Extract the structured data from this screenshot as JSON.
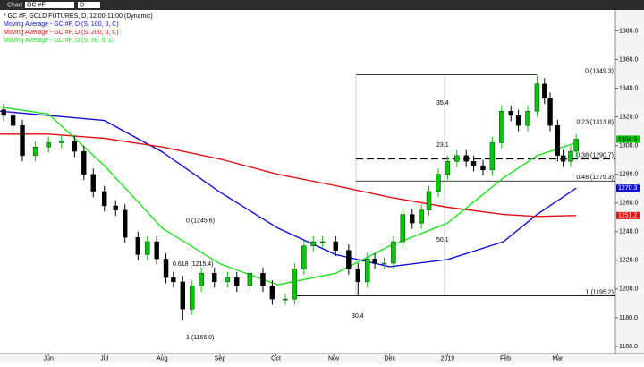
{
  "toolbar": {
    "tab": "Chart",
    "symbol": "GC #F",
    "interval": "D"
  },
  "chart_data": {
    "type": "candlestick",
    "title": "* GC #F, GOLD FUTURES, D, 12:00-11:00 (Dynamic)",
    "up_color": "#00c800",
    "down_color": "#000000",
    "candles": {
      "x": [
        -24,
        -19,
        -14,
        -7,
        0,
        7,
        14,
        19,
        24,
        30,
        36,
        41,
        48,
        53,
        58,
        63,
        67,
        72,
        77,
        82,
        89,
        96,
        101,
        108,
        115,
        120,
        127,
        132,
        137,
        142,
        147,
        154,
        161,
        166,
        171,
        175,
        180,
        185,
        190,
        195,
        200,
        204,
        209,
        214,
        219,
        224,
        228,
        233,
        238,
        243,
        248,
        252,
        257,
        262,
        266,
        269,
        273,
        276,
        280,
        283
      ],
      "open": [
        1325,
        1321,
        1314,
        1293,
        1299,
        1302,
        1303,
        1296,
        1280,
        1268,
        1258,
        1255,
        1236,
        1224,
        1233,
        1221,
        1208,
        1205,
        1186,
        1202,
        1211,
        1205,
        1208,
        1202,
        1211,
        1202,
        1193,
        1193,
        1214,
        1230,
        1233,
        1233,
        1227,
        1214,
        1205,
        1221,
        1218,
        1218,
        1233,
        1252,
        1246,
        1255,
        1268,
        1280,
        1289,
        1293,
        1289,
        1286,
        1283,
        1302,
        1324,
        1321,
        1314,
        1324,
        1343,
        1333,
        1314,
        1293,
        1289,
        1296
      ],
      "high": [
        1329,
        1325,
        1318,
        1303,
        1306,
        1307,
        1307,
        1300,
        1284,
        1272,
        1262,
        1259,
        1240,
        1237,
        1237,
        1225,
        1212,
        1209,
        1206,
        1215,
        1215,
        1212,
        1212,
        1215,
        1215,
        1206,
        1197,
        1218,
        1234,
        1237,
        1237,
        1237,
        1231,
        1218,
        1225,
        1225,
        1222,
        1237,
        1256,
        1256,
        1259,
        1272,
        1284,
        1293,
        1297,
        1297,
        1293,
        1290,
        1306,
        1328,
        1328,
        1325,
        1328,
        1349,
        1347,
        1337,
        1318,
        1297,
        1300,
        1308
      ],
      "low": [
        1317,
        1310,
        1289,
        1289,
        1295,
        1298,
        1292,
        1276,
        1264,
        1254,
        1251,
        1232,
        1220,
        1220,
        1217,
        1204,
        1201,
        1178,
        1182,
        1198,
        1201,
        1201,
        1198,
        1198,
        1198,
        1189,
        1189,
        1189,
        1210,
        1226,
        1229,
        1223,
        1210,
        1195,
        1201,
        1214,
        1214,
        1214,
        1229,
        1242,
        1242,
        1251,
        1264,
        1276,
        1285,
        1285,
        1282,
        1279,
        1279,
        1298,
        1317,
        1310,
        1310,
        1320,
        1329,
        1310,
        1289,
        1285,
        1285,
        1292
      ],
      "close": [
        1321,
        1314,
        1293,
        1299,
        1302,
        1303,
        1296,
        1280,
        1268,
        1258,
        1255,
        1236,
        1224,
        1233,
        1221,
        1208,
        1205,
        1186,
        1202,
        1211,
        1205,
        1208,
        1202,
        1211,
        1202,
        1193,
        1193,
        1214,
        1230,
        1233,
        1233,
        1227,
        1214,
        1205,
        1221,
        1218,
        1218,
        1233,
        1252,
        1246,
        1255,
        1268,
        1280,
        1289,
        1293,
        1289,
        1286,
        1283,
        1302,
        1324,
        1321,
        1314,
        1324,
        1343,
        1333,
        1314,
        1293,
        1289,
        1296,
        1304.5
      ]
    },
    "series": [
      {
        "name": "Moving Average - GC #F, D (S, 100, 0, C)",
        "color": "#1010d0",
        "x": [
          -26,
          30,
          61,
          92,
          123,
          154,
          183,
          214,
          244,
          262,
          283
        ],
        "values": [
          1324,
          1317.5,
          1295.6,
          1267.5,
          1242.5,
          1224,
          1215.6,
          1220.6,
          1233,
          1252,
          1270.3
        ]
      },
      {
        "name": "Moving Average - GC #F, D (S, 200, 0, C)",
        "color": "#e01010",
        "x": [
          -26,
          0,
          30,
          61,
          92,
          123,
          154,
          183,
          214,
          244,
          262,
          283
        ],
        "values": [
          1308,
          1308,
          1305,
          1299,
          1290.6,
          1280,
          1272,
          1264,
          1257,
          1252,
          1250.6,
          1251.2
        ]
      },
      {
        "name": "Moving Average - GC #F, D (S, 50, 0, C)",
        "color": "#20e020",
        "x": [
          -26,
          0,
          30,
          61,
          92,
          123,
          154,
          183,
          214,
          244,
          262,
          283
        ],
        "values": [
          1327,
          1322,
          1286,
          1242.5,
          1217.5,
          1203,
          1211,
          1230,
          1246,
          1277.5,
          1293,
          1302
        ]
      }
    ],
    "fib_upper": [
      {
        "value": 1349.3,
        "label": "0 (1349.3)",
        "style": "solid"
      },
      {
        "value": 1313.8,
        "label": "0.23 (1313.8)",
        "style": "none"
      },
      {
        "value": 1290.7,
        "label": "0.38 (1290.7)",
        "style": "dashed"
      },
      {
        "value": 1275.3,
        "label": "0.48 (1275.3)",
        "style": "solid"
      },
      {
        "value": 1195.2,
        "label": "1 (1195.2)",
        "style": "solid"
      }
    ],
    "fib_lower": [
      {
        "value": 1245.6,
        "label": "0 (1245.6)"
      },
      {
        "value": 1215.4,
        "label": "0.618 (1215.4)"
      },
      {
        "value": 1166.0,
        "label": "1 (1166.0)"
      }
    ],
    "annotations": [
      "35.4",
      "23.1",
      "50.1",
      "30.4"
    ],
    "xlim": [
      -26,
      304
    ],
    "xticks": [
      {
        "value": 0,
        "label": "Jun"
      },
      {
        "value": 30,
        "label": "Jul"
      },
      {
        "value": 61,
        "label": "Aug"
      },
      {
        "value": 92,
        "label": "Sep"
      },
      {
        "value": 122,
        "label": "Oct"
      },
      {
        "value": 153,
        "label": "Nov"
      },
      {
        "value": 183,
        "label": "Dec"
      },
      {
        "value": 214,
        "label": "2019"
      },
      {
        "value": 245,
        "label": "Feb"
      },
      {
        "value": 273,
        "label": "Mar"
      }
    ],
    "ylim": [
      1155,
      1394
    ],
    "yticks": [
      {
        "value": 1160,
        "label": "1160.0"
      },
      {
        "value": 1180,
        "label": "1180.0"
      },
      {
        "value": 1200,
        "label": "1200.0"
      },
      {
        "value": 1220,
        "label": "1220.0"
      },
      {
        "value": 1240,
        "label": "1240.0"
      },
      {
        "value": 1260,
        "label": "1260.0"
      },
      {
        "value": 1280,
        "label": "1280.0"
      },
      {
        "value": 1300,
        "label": "1300.0"
      },
      {
        "value": 1320,
        "label": "1320.0"
      },
      {
        "value": 1340,
        "label": "1340.0"
      },
      {
        "value": 1360,
        "label": "1360.0"
      },
      {
        "value": 1380,
        "label": "1380.0"
      }
    ],
    "grid": false
  }
}
